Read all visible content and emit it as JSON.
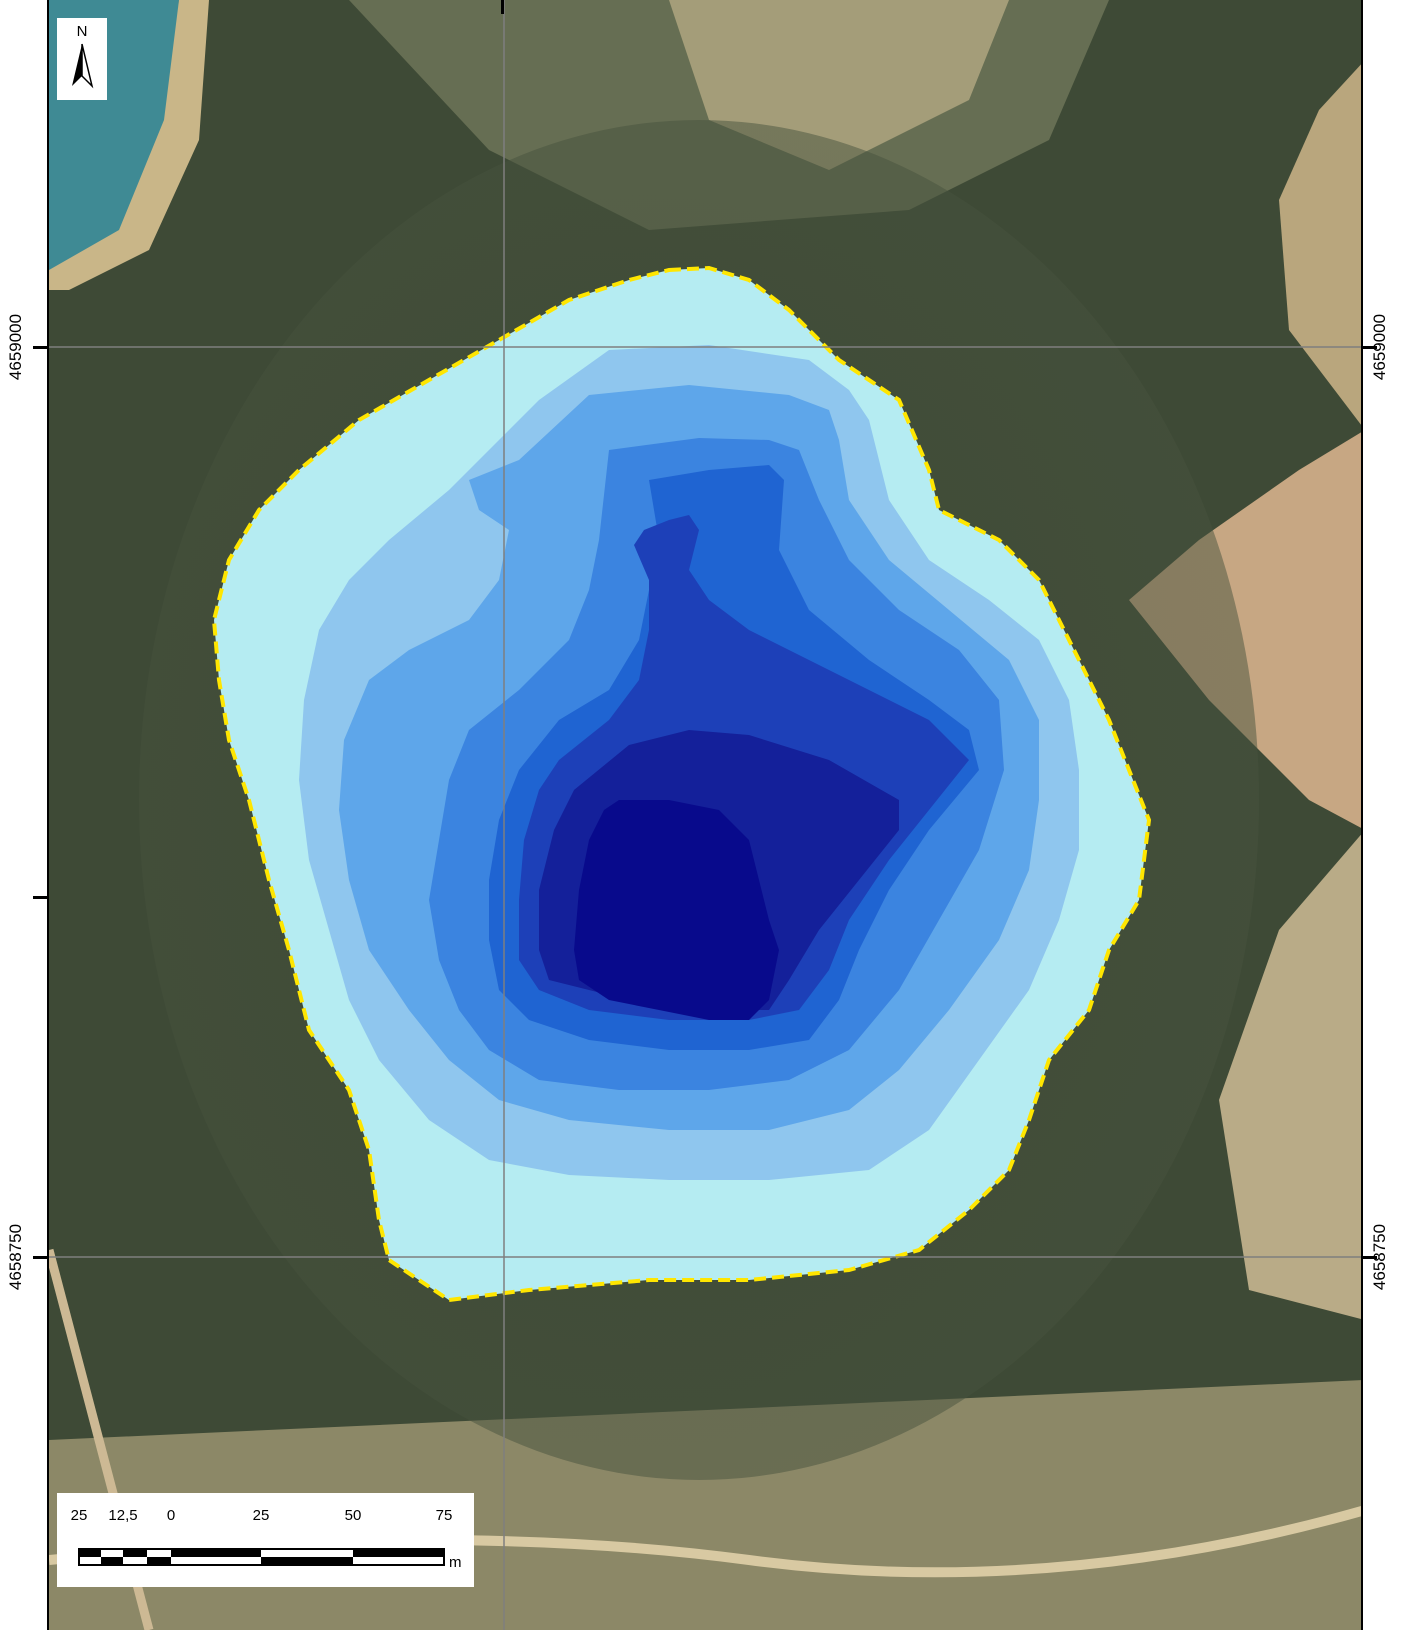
{
  "map": {
    "coordinates": {
      "left_upper": "4659000",
      "left_lower": "4658750",
      "right_upper": "4659000",
      "right_lower": "4658750"
    },
    "north_arrow": {
      "letter": "N",
      "icon": "north-arrow-icon"
    },
    "scale_bar": {
      "ticks": [
        "25",
        "12,5",
        "0",
        "25",
        "50",
        "75"
      ],
      "unit": "m"
    },
    "colors": {
      "vegetation": "#3e4a36",
      "soil": "#c7b48c",
      "boundary": "#ffe600",
      "gridline": "#7f7f7f",
      "depth_bands": [
        "#b5ecf2",
        "#8fc6ee",
        "#5ea6ea",
        "#3b84e0",
        "#1f64d2",
        "#1d40b8",
        "#14209a",
        "#080a8c"
      ]
    }
  }
}
